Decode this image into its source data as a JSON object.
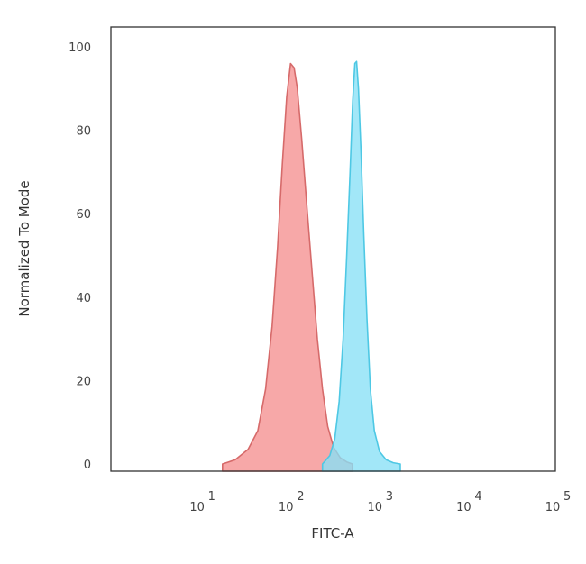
{
  "chart_data": {
    "type": "area",
    "xlabel": "FITC-A",
    "ylabel": "Normalized To Mode",
    "x_scale": "log",
    "xlim": [
      1,
      100000
    ],
    "ylim": [
      0,
      100
    ],
    "x_ticks": [
      {
        "value": 10,
        "base": "10",
        "exp": "1"
      },
      {
        "value": 100,
        "base": "10",
        "exp": "2"
      },
      {
        "value": 1000,
        "base": "10",
        "exp": "3"
      },
      {
        "value": 10000,
        "base": "10",
        "exp": "4"
      },
      {
        "value": 100000,
        "base": "10",
        "exp": "5"
      }
    ],
    "y_ticks": [
      0,
      20,
      40,
      60,
      80,
      100
    ],
    "grid": false,
    "series": [
      {
        "color": "#f59090",
        "edge_color": "#d66a6a",
        "points": [
          [
            18,
            0
          ],
          [
            25,
            1
          ],
          [
            35,
            3.5
          ],
          [
            45,
            8
          ],
          [
            55,
            18
          ],
          [
            65,
            33
          ],
          [
            75,
            52
          ],
          [
            85,
            72
          ],
          [
            95,
            88
          ],
          [
            105,
            96
          ],
          [
            115,
            95
          ],
          [
            125,
            90
          ],
          [
            140,
            78
          ],
          [
            160,
            62
          ],
          [
            185,
            45
          ],
          [
            210,
            30
          ],
          [
            240,
            18
          ],
          [
            275,
            9
          ],
          [
            320,
            4
          ],
          [
            380,
            1.5
          ],
          [
            450,
            0.5
          ],
          [
            520,
            0
          ]
        ]
      },
      {
        "color": "#88e0f6",
        "edge_color": "#4ec8e4",
        "points": [
          [
            240,
            0
          ],
          [
            290,
            2
          ],
          [
            330,
            6
          ],
          [
            370,
            15
          ],
          [
            410,
            30
          ],
          [
            450,
            50
          ],
          [
            490,
            70
          ],
          [
            525,
            87
          ],
          [
            555,
            96
          ],
          [
            580,
            96.5
          ],
          [
            610,
            90
          ],
          [
            650,
            75
          ],
          [
            700,
            55
          ],
          [
            760,
            35
          ],
          [
            830,
            18
          ],
          [
            920,
            8
          ],
          [
            1050,
            3
          ],
          [
            1250,
            1
          ],
          [
            1500,
            0.3
          ],
          [
            1800,
            0
          ]
        ]
      }
    ]
  }
}
